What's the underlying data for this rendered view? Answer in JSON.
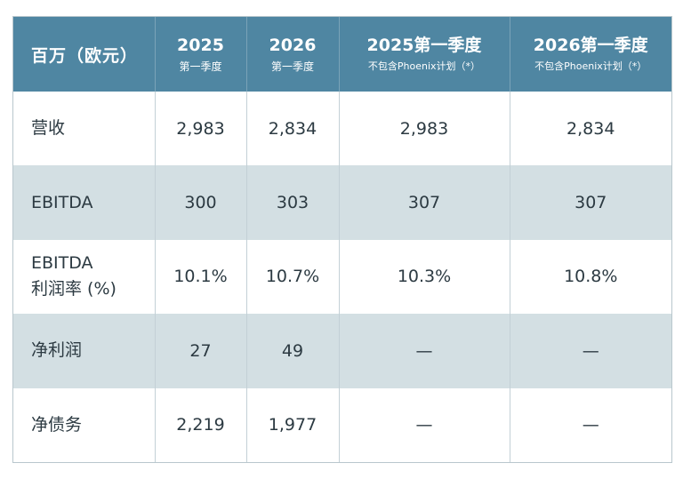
{
  "table": {
    "header": {
      "label": "百万（欧元）",
      "columns": [
        {
          "year": "2025",
          "sub": "第一季度"
        },
        {
          "year": "2026",
          "sub": "第一季度"
        },
        {
          "year": "2025第一季度",
          "sub": "不包含Phoenix计划（*）"
        },
        {
          "year": "2026第一季度",
          "sub": "不包含Phoenix计划（*）"
        }
      ]
    },
    "rows": [
      {
        "label": "营收",
        "values": [
          "2,983",
          "2,834",
          "2,983",
          "2,834"
        ]
      },
      {
        "label": "EBITDA",
        "values": [
          "300",
          "303",
          "307",
          "307"
        ]
      },
      {
        "label_line1": "EBITDA",
        "label_line2": "利润率 (%)",
        "values": [
          "10.1%",
          "10.7%",
          "10.3%",
          "10.8%"
        ]
      },
      {
        "label": "净利润",
        "values": [
          "27",
          "49",
          "—",
          "—"
        ]
      },
      {
        "label": "净债务",
        "values": [
          "2,219",
          "1,977",
          "—",
          "—"
        ]
      }
    ]
  }
}
